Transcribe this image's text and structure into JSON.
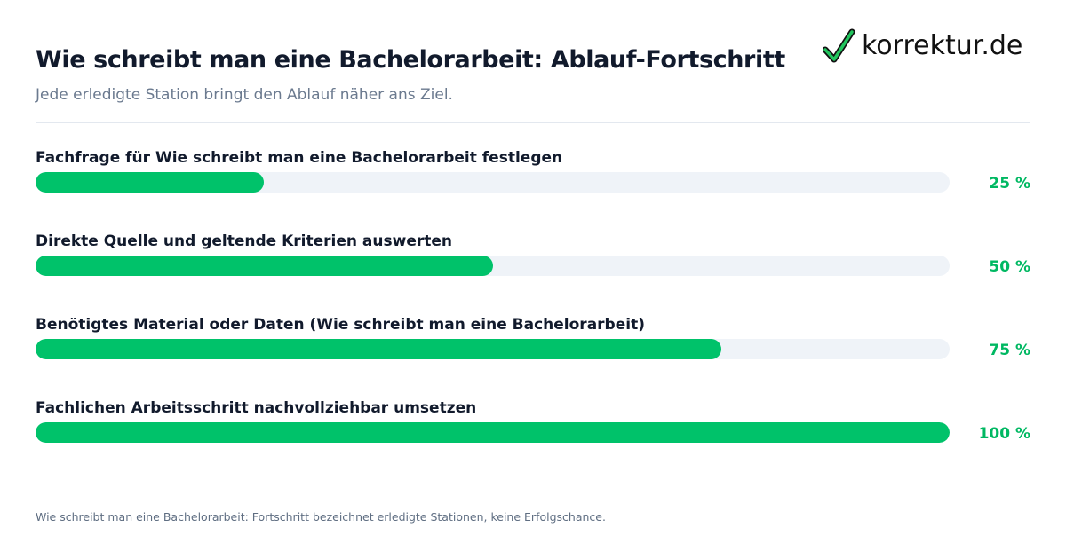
{
  "header": {
    "title": "Wie schreibt man eine Bachelorarbeit: Ablauf-Fortschritt",
    "subtitle": "Jede erledigte Station bringt den Ablauf näher ans Ziel."
  },
  "logo": {
    "text": "korrektur.de",
    "icon": "checkmark-icon",
    "accent_color": "#22c55e"
  },
  "chart_data": {
    "type": "bar",
    "orientation": "horizontal",
    "title": "Wie schreibt man eine Bachelorarbeit: Ablauf-Fortschritt",
    "subtitle": "Jede erledigte Station bringt den Ablauf näher ans Ziel.",
    "categories": [
      "Fachfrage für Wie schreibt man eine Bachelorarbeit festlegen",
      "Direkte Quelle und geltende Kriterien auswerten",
      "Benötigtes Material oder Daten (Wie schreibt man eine Bachelorarbeit)",
      "Fachlichen Arbeitsschritt nachvollziehbar umsetzen"
    ],
    "values": [
      25,
      50,
      75,
      100
    ],
    "value_labels": [
      "25 %",
      "50 %",
      "75 %",
      "100 %"
    ],
    "xlim": [
      0,
      100
    ],
    "unit": "%",
    "colors": {
      "fill": "#00c26a",
      "track": "#eff3f8",
      "value_text": "#00b862"
    },
    "grid": false,
    "legend": "none"
  },
  "footer": {
    "note": "Wie schreibt man eine Bachelorarbeit: Fortschritt bezeichnet erledigte Stationen, keine Erfolgschance."
  }
}
